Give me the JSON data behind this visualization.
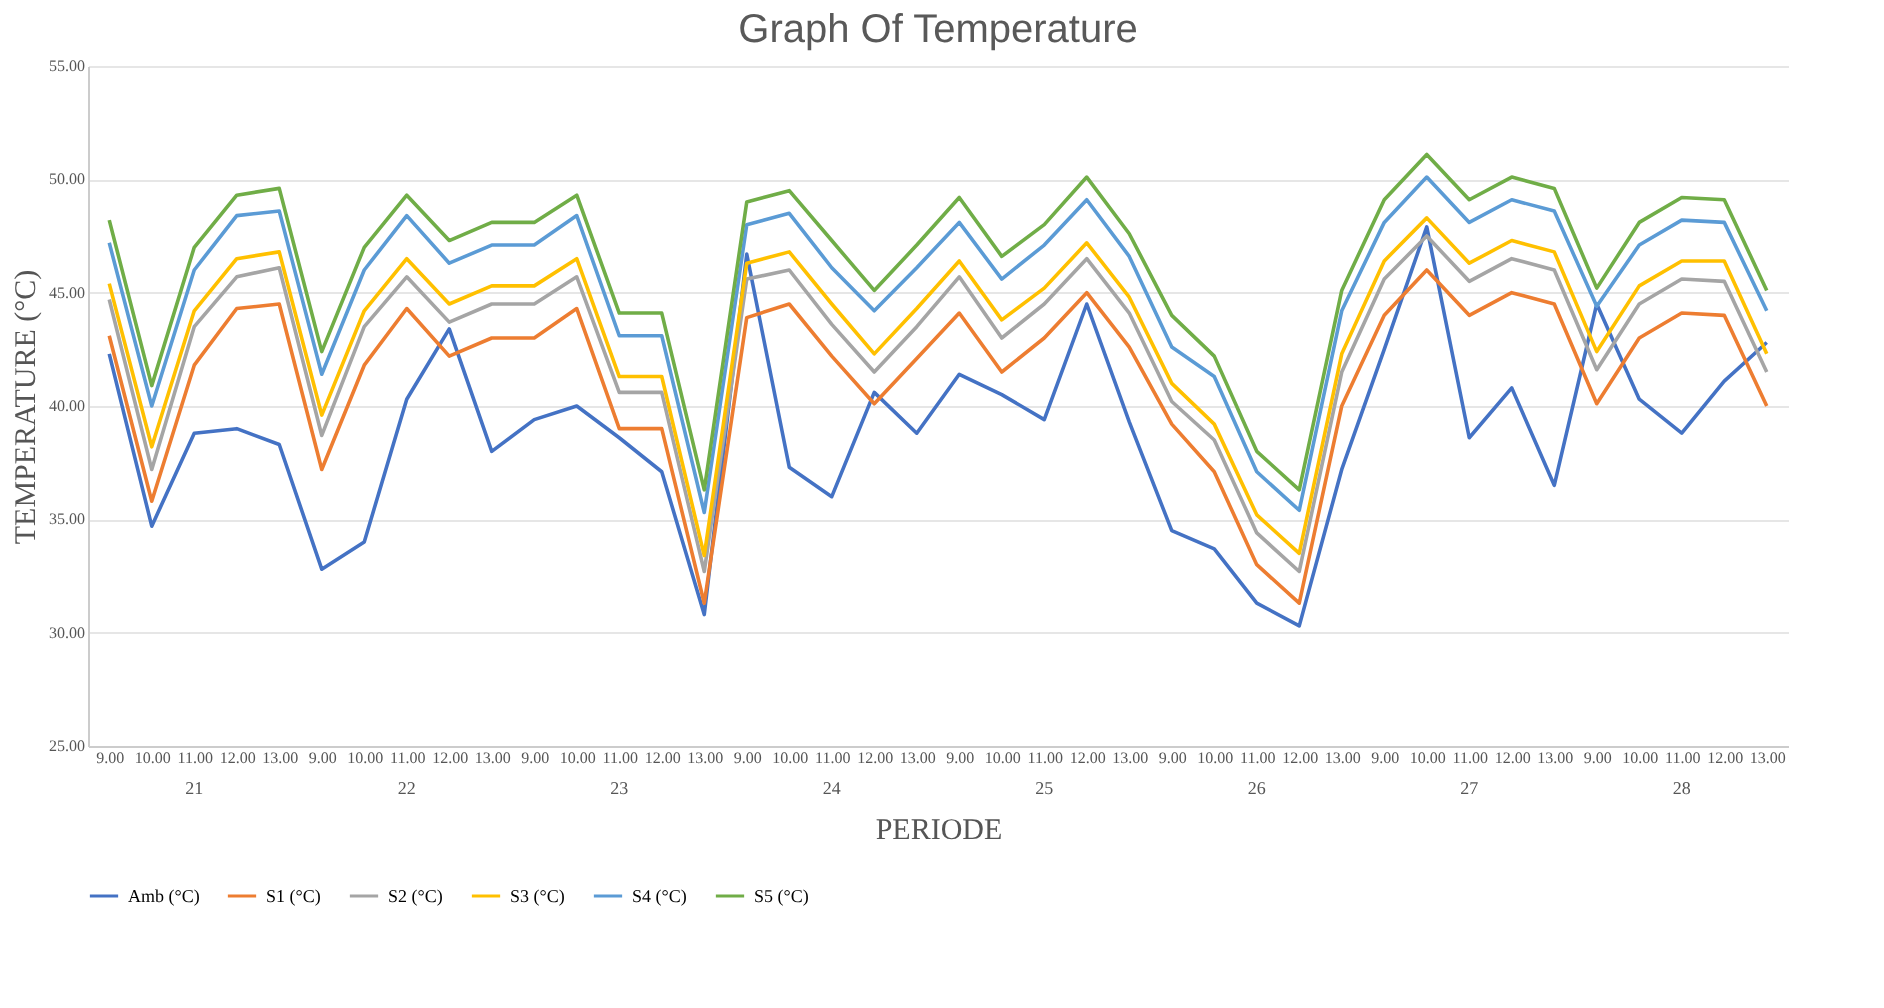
{
  "chart_data": {
    "type": "line",
    "title": "Graph Of Temperature",
    "xlabel": "PERIODE",
    "ylabel": "TEMPERATURE (°C)",
    "categories": [
      "9.00",
      "10.00",
      "11.00",
      "12.00",
      "13.00",
      "9.00",
      "10.00",
      "11.00",
      "12.00",
      "13.00",
      "9.00",
      "10.00",
      "11.00",
      "12.00",
      "13.00",
      "9.00",
      "10.00",
      "11.00",
      "12.00",
      "13.00",
      "9.00",
      "10.00",
      "11.00",
      "12.00",
      "13.00",
      "9.00",
      "10.00",
      "11.00",
      "12.00",
      "13.00",
      "9.00",
      "10.00",
      "11.00",
      "12.00",
      "13.00",
      "9.00",
      "10.00",
      "11.00",
      "12.00",
      "13.00"
    ],
    "annotations": [
      "21",
      "22",
      "23",
      "24",
      "25",
      "26",
      "27",
      "28"
    ],
    "series": [
      {
        "name": "Amb (°C)",
        "color": "#4472c4",
        "values": [
          42.3,
          34.7,
          38.8,
          39.0,
          38.3,
          32.8,
          34.0,
          40.3,
          43.4,
          38.0,
          39.4,
          40.0,
          38.6,
          37.1,
          30.8,
          46.7,
          37.3,
          36.0,
          40.6,
          38.8,
          41.4,
          40.5,
          39.4,
          44.5,
          39.3,
          34.5,
          33.7,
          31.3,
          30.3,
          37.2,
          42.5,
          47.9,
          38.6,
          40.8,
          36.5,
          44.5,
          40.3,
          38.8,
          41.1,
          42.8
        ]
      },
      {
        "name": "S1 (°C)",
        "color": "#ed7d31",
        "values": [
          43.1,
          35.8,
          41.8,
          44.3,
          44.5,
          37.2,
          41.8,
          44.3,
          42.2,
          43.0,
          43.0,
          44.3,
          39.0,
          39.0,
          31.3,
          43.9,
          44.5,
          42.2,
          40.1,
          42.1,
          44.1,
          41.5,
          43.0,
          45.0,
          42.6,
          39.2,
          37.1,
          33.0,
          31.3,
          40.0,
          44.0,
          46.0,
          44.0,
          45.0,
          44.5,
          40.1,
          43.0,
          44.1,
          44.0,
          40.0
        ]
      },
      {
        "name": "S2 (°C)",
        "color": "#a5a5a5",
        "values": [
          44.7,
          37.2,
          43.5,
          45.7,
          46.1,
          38.7,
          43.5,
          45.7,
          43.7,
          44.5,
          44.5,
          45.7,
          40.6,
          40.6,
          32.7,
          45.6,
          46.0,
          43.6,
          41.5,
          43.5,
          45.7,
          43.0,
          44.5,
          46.5,
          44.1,
          40.2,
          38.5,
          34.4,
          32.7,
          41.5,
          45.6,
          47.5,
          45.5,
          46.5,
          46.0,
          41.6,
          44.5,
          45.6,
          45.5,
          41.5
        ]
      },
      {
        "name": "S3 (°C)",
        "color": "#ffc000",
        "values": [
          45.4,
          38.2,
          44.2,
          46.5,
          46.8,
          39.6,
          44.2,
          46.5,
          44.5,
          45.3,
          45.3,
          46.5,
          41.3,
          41.3,
          33.4,
          46.3,
          46.8,
          44.5,
          42.3,
          44.3,
          46.4,
          43.8,
          45.2,
          47.2,
          44.8,
          41.0,
          39.2,
          35.2,
          33.5,
          42.3,
          46.4,
          48.3,
          46.3,
          47.3,
          46.8,
          42.4,
          45.3,
          46.4,
          46.4,
          42.3
        ]
      },
      {
        "name": "S4 (°C)",
        "color": "#5b9bd5",
        "values": [
          47.2,
          40.0,
          46.0,
          48.4,
          48.6,
          41.4,
          46.0,
          48.4,
          46.3,
          47.1,
          47.1,
          48.4,
          43.1,
          43.1,
          35.3,
          48.0,
          48.5,
          46.1,
          44.2,
          46.1,
          48.1,
          45.6,
          47.1,
          49.1,
          46.6,
          42.6,
          41.3,
          37.1,
          35.4,
          44.2,
          48.1,
          50.1,
          48.1,
          49.1,
          48.6,
          44.4,
          47.1,
          48.2,
          48.1,
          44.2
        ]
      },
      {
        "name": "S5 (°C)",
        "color": "#70ad47",
        "values": [
          48.2,
          40.9,
          47.0,
          49.3,
          49.6,
          42.4,
          47.0,
          49.3,
          47.3,
          48.1,
          48.1,
          49.3,
          44.1,
          44.1,
          36.3,
          49.0,
          49.5,
          47.3,
          45.1,
          47.1,
          49.2,
          46.6,
          48.0,
          50.1,
          47.6,
          44.0,
          42.2,
          38.0,
          36.3,
          45.1,
          49.1,
          51.1,
          49.1,
          50.1,
          49.6,
          45.2,
          48.1,
          49.2,
          49.1,
          45.1
        ]
      }
    ],
    "ylim": [
      25,
      55
    ],
    "yticks": [
      {
        "value": 25,
        "label": "25.00"
      },
      {
        "value": 30,
        "label": "30.00"
      },
      {
        "value": 35,
        "label": "35.00"
      },
      {
        "value": 40,
        "label": "40.00"
      },
      {
        "value": 45,
        "label": "45.00"
      },
      {
        "value": 50,
        "label": "50.00"
      },
      {
        "value": 55,
        "label": "55.00"
      }
    ],
    "grid": "y",
    "legend": "bottom",
    "line_style": "solid"
  }
}
